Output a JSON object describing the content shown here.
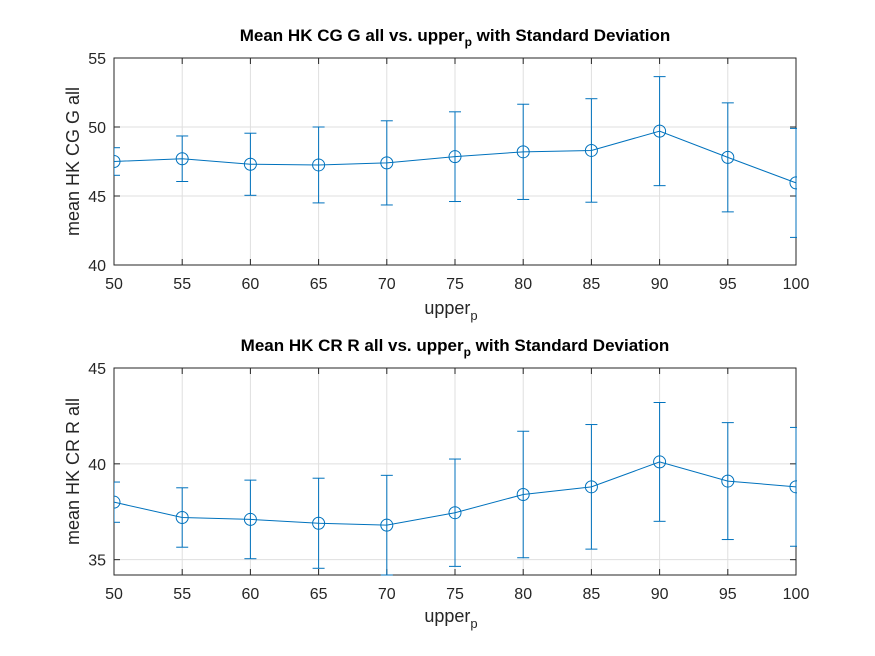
{
  "colors": {
    "series": "#0072BD",
    "grid": "#dfdfdf",
    "axis": "#262626",
    "background": "#ffffff"
  },
  "chart_data": [
    {
      "type": "line",
      "title": {
        "main": "Mean HK CG G all vs. upper",
        "subscript": "p",
        "suffix": " with Standard Deviation"
      },
      "xlabel": {
        "main": "upper",
        "subscript": "p"
      },
      "ylabel": "mean HK CG G all",
      "x": [
        50,
        55,
        60,
        65,
        70,
        75,
        80,
        85,
        90,
        95,
        100
      ],
      "series": [
        {
          "values": [
            47.5,
            47.7,
            47.3,
            47.25,
            47.4,
            47.85,
            48.2,
            48.3,
            49.7,
            47.8,
            45.95
          ],
          "std": [
            1.0,
            1.65,
            2.25,
            2.75,
            3.05,
            3.25,
            3.45,
            3.75,
            3.95,
            3.95,
            3.95
          ],
          "marker": "circle"
        }
      ],
      "xlim": [
        50,
        100
      ],
      "ylim": [
        40,
        55
      ],
      "xticks": [
        "50",
        "55",
        "60",
        "65",
        "70",
        "75",
        "80",
        "85",
        "90",
        "95",
        "100"
      ],
      "yticks": [
        "40",
        "45",
        "50",
        "55"
      ],
      "grid": true
    },
    {
      "type": "line",
      "title": {
        "main": "Mean HK CR R all vs. upper",
        "subscript": "p",
        "suffix": " with Standard Deviation"
      },
      "xlabel": {
        "main": "upper",
        "subscript": "p"
      },
      "ylabel": "mean HK CR R all",
      "x": [
        50,
        55,
        60,
        65,
        70,
        75,
        80,
        85,
        90,
        95,
        100
      ],
      "series": [
        {
          "values": [
            38.0,
            37.2,
            37.1,
            36.9,
            36.8,
            37.45,
            38.4,
            38.8,
            40.1,
            39.1,
            38.8
          ],
          "std": [
            1.05,
            1.55,
            2.05,
            2.35,
            2.6,
            2.8,
            3.3,
            3.25,
            3.1,
            3.05,
            3.1
          ],
          "marker": "circle"
        }
      ],
      "xlim": [
        50,
        100
      ],
      "ylim": [
        34.2,
        45
      ],
      "xticks": [
        "50",
        "55",
        "60",
        "65",
        "70",
        "75",
        "80",
        "85",
        "90",
        "95",
        "100"
      ],
      "yticks": [
        "35",
        "40",
        "45"
      ],
      "grid": true
    }
  ]
}
